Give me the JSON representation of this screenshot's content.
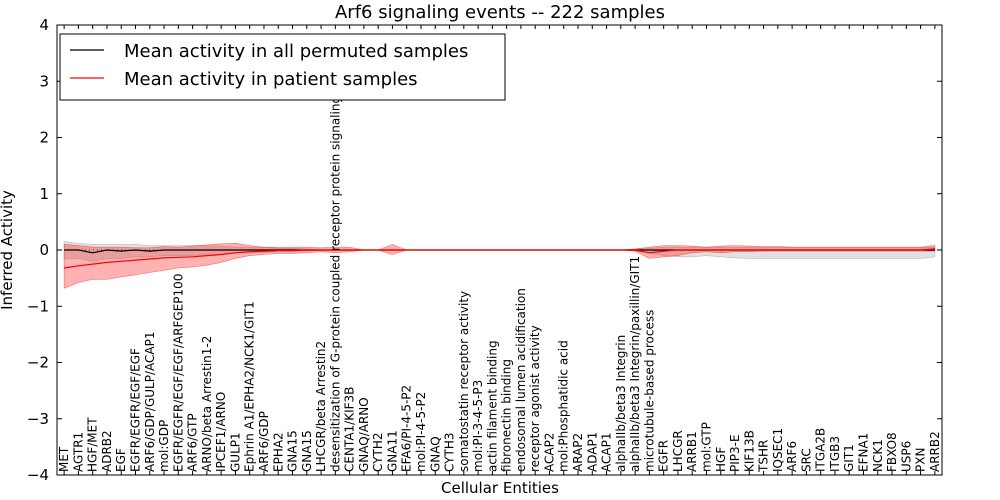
{
  "chart_data": {
    "type": "line",
    "title": "Arf6 signaling events -- 222 samples",
    "xlabel": "Cellular Entities",
    "ylabel": "Inferred Activity",
    "ylim": [
      -4,
      4
    ],
    "yticks": [
      -4,
      -3,
      -2,
      -1,
      0,
      1,
      2,
      3,
      4
    ],
    "legend_position": "top-left",
    "colors": {
      "permuted": "#000000",
      "patient": "#ff0000",
      "patient_band": "#ff0000",
      "permuted_band": "#aaaaaa"
    },
    "categories": [
      "MET",
      "AGTR1",
      "HGF/MET",
      "ADRB2",
      "EGF",
      "EGFR/EGFR/EGF/EGF",
      "ARF6/GDP/GULP/ACAP1",
      "mol:GDP",
      "EGFR/EGFR/EGF/EGF/ARFGEP100",
      "ARF6/GTP",
      "ARNO/beta Arrestin1-2",
      "IPCEF1/ARNO",
      "GULP1",
      "Ephrin A1/EPHA2/NCK1/GIT1",
      "ARF6/GDP",
      "EPHA2",
      "GNA15",
      "GNA15",
      "LHCGR/beta Arrestin2",
      "desensitization of G-protein coupled receptor protein signaling pathway",
      "CENTA1/KIF3B",
      "GNAQ/ARNO",
      "CYTH2",
      "GNA11",
      "EFA6/PI-4-5-P2",
      "mol:PI-4-5-P2",
      "GNAQ",
      "CYTH3",
      "somatostatin receptor activity",
      "mol:PI-3-4-5-P3",
      "actin filament binding",
      "fibronectin binding",
      "endosomal lumen acidification",
      "receptor agonist activity",
      "ACAP2",
      "mol:Phosphatidic acid",
      "ARAP2",
      "ADAP1",
      "ACAP1",
      "alphaIIb/beta3 Integrin",
      "alphaIIb/beta3 Integrin/paxillin/GIT1",
      "microtubule-based process",
      "EGFR",
      "LHCGR",
      "ARRB1",
      "mol:GTP",
      "HGF",
      "PIP3-E",
      "KIF13B",
      "TSHR",
      "IQSEC1",
      "ARF6",
      "SRC",
      "ITGA2B",
      "ITGB3",
      "GIT1",
      "EFNA1",
      "NCK1",
      "FBXO8",
      "USP6",
      "PXN",
      "ARRB2"
    ],
    "series": [
      {
        "name": "Mean activity in all permuted samples",
        "color": "#000000",
        "values": [
          0,
          0,
          -0.05,
          0,
          -0.02,
          0,
          -0.02,
          0,
          0,
          0,
          0,
          0,
          0,
          0,
          0,
          0,
          0,
          0,
          0,
          0,
          0,
          0,
          0,
          0,
          0,
          0,
          0,
          0,
          0,
          0,
          0,
          0,
          0,
          0,
          0,
          0,
          0,
          0,
          0,
          0,
          0,
          0,
          0,
          0,
          0,
          0,
          0,
          0,
          0,
          0,
          0,
          0,
          0,
          0,
          0,
          0,
          0,
          0,
          0,
          0,
          0,
          0
        ],
        "band_lower": [
          -0.15,
          -0.15,
          -0.2,
          -0.15,
          -0.15,
          -0.12,
          -0.12,
          -0.1,
          -0.1,
          -0.1,
          -0.08,
          -0.08,
          -0.05,
          -0.05,
          -0.05,
          -0.02,
          -0.02,
          -0.02,
          0,
          0,
          0,
          0,
          0,
          0,
          0,
          0,
          0,
          0,
          0,
          0,
          0,
          0,
          0,
          0,
          0,
          0,
          0,
          0,
          0,
          0,
          -0.02,
          -0.05,
          -0.1,
          -0.12,
          -0.12,
          -0.1,
          -0.12,
          -0.14,
          -0.15,
          -0.15,
          -0.15,
          -0.15,
          -0.15,
          -0.15,
          -0.15,
          -0.15,
          -0.15,
          -0.15,
          -0.15,
          -0.15,
          -0.15,
          -0.12
        ],
        "band_upper": [
          0.15,
          0.12,
          0.1,
          0.1,
          0.1,
          0.1,
          0.08,
          0.08,
          0.08,
          0.08,
          0.07,
          0.07,
          0.05,
          0.05,
          0.05,
          0.03,
          0.03,
          0.02,
          0,
          0,
          0,
          0,
          0,
          0,
          0,
          0,
          0,
          0,
          0,
          0,
          0,
          0,
          0,
          0,
          0,
          0,
          0,
          0,
          0,
          0,
          0.02,
          0.03,
          0.05,
          0.05,
          0.05,
          0.05,
          0.05,
          0.05,
          0.05,
          0.05,
          0.05,
          0.05,
          0.05,
          0.05,
          0.05,
          0.05,
          0.05,
          0.05,
          0.05,
          0.05,
          0.05,
          0.05
        ]
      },
      {
        "name": "Mean activity in patient samples",
        "color": "#ff0000",
        "values": [
          -0.32,
          -0.28,
          -0.25,
          -0.22,
          -0.2,
          -0.18,
          -0.16,
          -0.14,
          -0.13,
          -0.12,
          -0.1,
          -0.08,
          -0.05,
          -0.03,
          -0.02,
          -0.01,
          -0.01,
          0,
          0,
          0,
          0,
          0,
          0,
          0,
          0,
          0,
          0,
          0,
          0,
          0,
          0,
          0,
          0,
          0,
          0,
          0,
          0,
          0,
          0,
          0,
          0,
          -0.05,
          -0.02,
          0,
          0,
          0,
          0,
          0,
          0,
          0,
          0,
          0,
          0,
          0,
          0,
          0,
          0,
          0,
          0,
          0,
          0,
          0.02
        ],
        "band_lower": [
          -0.68,
          -0.58,
          -0.52,
          -0.52,
          -0.48,
          -0.44,
          -0.4,
          -0.36,
          -0.32,
          -0.3,
          -0.27,
          -0.22,
          -0.15,
          -0.1,
          -0.08,
          -0.06,
          -0.06,
          -0.05,
          -0.03,
          -0.05,
          -0.03,
          0,
          0,
          -0.08,
          0,
          0,
          0,
          0,
          0,
          0,
          0,
          0,
          0,
          0,
          0,
          0,
          0,
          0,
          0,
          0,
          -0.02,
          -0.15,
          -0.12,
          -0.1,
          -0.05,
          -0.03,
          -0.05,
          -0.03,
          -0.03,
          -0.02,
          -0.02,
          -0.02,
          -0.02,
          -0.02,
          -0.02,
          -0.02,
          -0.02,
          -0.02,
          -0.02,
          -0.02,
          -0.02,
          -0.02
        ],
        "band_upper": [
          0.1,
          0.08,
          0.05,
          0.05,
          0.05,
          0.04,
          0.04,
          0.06,
          0.05,
          0.07,
          0.09,
          0.11,
          0.12,
          0.08,
          0.05,
          0.05,
          0.05,
          0.05,
          0.04,
          0.05,
          0.05,
          0,
          0,
          0.1,
          0,
          0,
          0,
          0,
          0,
          0,
          0,
          0,
          0,
          0,
          0,
          0,
          0,
          0,
          0,
          0,
          0.02,
          0.05,
          0.08,
          0.08,
          0.07,
          0.05,
          0.07,
          0.08,
          0.07,
          0.06,
          0.06,
          0.05,
          0.05,
          0.05,
          0.05,
          0.05,
          0.05,
          0.05,
          0.05,
          0.05,
          0.05,
          0.08
        ]
      }
    ]
  }
}
